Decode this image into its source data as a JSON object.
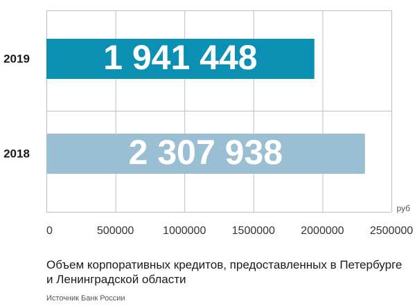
{
  "chart_data": {
    "type": "bar",
    "orientation": "horizontal",
    "categories": [
      "2019",
      "2018"
    ],
    "values": [
      1941448,
      2307938
    ],
    "value_labels": [
      "1 941 448",
      "2 307 938"
    ],
    "bar_colors": [
      "#0b8fb3",
      "#9bbfd2"
    ],
    "xlim": [
      0,
      2500000
    ],
    "x_ticks": [
      0,
      500000,
      1000000,
      1500000,
      2000000,
      2500000
    ],
    "x_tick_labels": [
      "0",
      "500000",
      "1000000",
      "1500000",
      "2000000",
      "2500000"
    ],
    "unit": "руб",
    "grid": true,
    "grid_color": "#bdbdbd"
  },
  "caption": "Объем корпоративных кредитов, предоставленных в Петербурге и Ленинградской области",
  "source": "Источник Банк России"
}
